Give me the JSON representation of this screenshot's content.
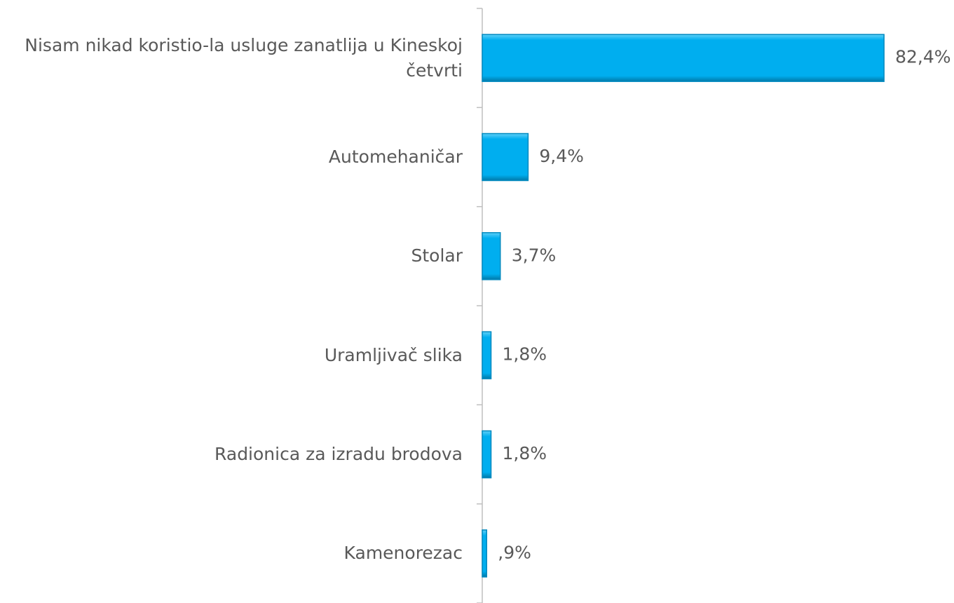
{
  "chart_data": {
    "type": "hbar",
    "categories": [
      "Nisam nikad koristio-la usluge zanatlija u Kineskoj četvrti",
      "Automehaničar",
      "Stolar",
      "Uramljivač slika",
      "Radionica za izradu brodova",
      "Kamenorezac"
    ],
    "values": [
      82.4,
      9.4,
      3.7,
      1.8,
      1.8,
      0.9
    ],
    "value_labels": [
      "82,4%",
      "9,4%",
      "3,7%",
      "1,8%",
      "1,8%",
      ",9%"
    ],
    "color": "#00aeef",
    "xlim": [
      0,
      90
    ]
  }
}
